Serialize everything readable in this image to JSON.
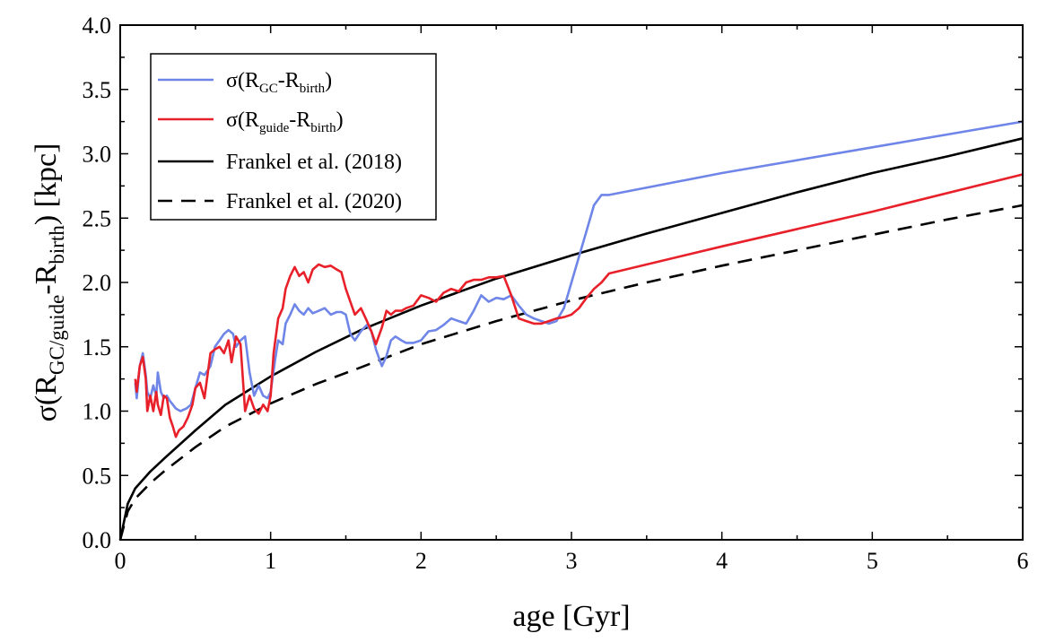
{
  "chart_data": {
    "type": "line",
    "xlabel": "age [Gyr]",
    "ylabel": {
      "base": "σ(R",
      "sub1": "GC/guide",
      "mid": "-R",
      "sub2": "birth",
      "end": ") [kpc]"
    },
    "xlim": [
      0,
      6
    ],
    "ylim": [
      0,
      4
    ],
    "x_ticks": [
      "0",
      "1",
      "2",
      "3",
      "4",
      "5",
      "6"
    ],
    "y_ticks": [
      "0.0",
      "0.5",
      "1.0",
      "1.5",
      "2.0",
      "2.5",
      "3.0",
      "3.5",
      "4.0"
    ],
    "grid": false,
    "legend_position": "top-left",
    "series": [
      {
        "name": "σ(R_GC-R_birth)",
        "legend": {
          "base": "σ(R",
          "sub1": "GC",
          "mid": "-R",
          "sub2": "birth",
          "end": ")"
        },
        "color": "#6f86e8",
        "dash": "solid",
        "x": [
          0.1,
          0.11,
          0.13,
          0.15,
          0.17,
          0.18,
          0.2,
          0.22,
          0.24,
          0.25,
          0.27,
          0.29,
          0.31,
          0.33,
          0.35,
          0.37,
          0.4,
          0.44,
          0.47,
          0.5,
          0.53,
          0.56,
          0.6,
          0.63,
          0.66,
          0.69,
          0.72,
          0.75,
          0.77,
          0.8,
          0.83,
          0.86,
          0.89,
          0.92,
          0.95,
          0.98,
          1.0,
          1.03,
          1.05,
          1.08,
          1.1,
          1.13,
          1.16,
          1.19,
          1.22,
          1.25,
          1.28,
          1.32,
          1.36,
          1.4,
          1.44,
          1.47,
          1.5,
          1.53,
          1.56,
          1.6,
          1.64,
          1.67,
          1.7,
          1.74,
          1.77,
          1.8,
          1.83,
          1.87,
          1.9,
          1.95,
          2.0,
          2.05,
          2.1,
          2.15,
          2.2,
          2.25,
          2.3,
          2.35,
          2.4,
          2.45,
          2.5,
          2.55,
          2.6,
          2.65,
          2.7,
          2.75,
          2.8,
          2.85,
          2.9,
          2.95,
          3.0,
          3.05,
          3.1,
          3.15,
          3.2,
          3.25,
          4.0,
          5.0,
          6.0
        ],
        "y": [
          1.22,
          1.1,
          1.35,
          1.45,
          1.28,
          1.15,
          1.1,
          1.2,
          1.12,
          1.3,
          1.15,
          1.1,
          1.12,
          1.08,
          1.05,
          1.02,
          1.0,
          1.02,
          1.05,
          1.18,
          1.3,
          1.28,
          1.35,
          1.5,
          1.55,
          1.6,
          1.63,
          1.6,
          1.5,
          1.55,
          1.58,
          1.3,
          1.12,
          1.2,
          1.12,
          1.1,
          1.15,
          1.4,
          1.55,
          1.52,
          1.68,
          1.75,
          1.83,
          1.78,
          1.75,
          1.8,
          1.76,
          1.78,
          1.8,
          1.75,
          1.77,
          1.77,
          1.75,
          1.6,
          1.55,
          1.62,
          1.67,
          1.62,
          1.48,
          1.35,
          1.43,
          1.55,
          1.58,
          1.55,
          1.53,
          1.53,
          1.55,
          1.62,
          1.63,
          1.67,
          1.72,
          1.7,
          1.68,
          1.78,
          1.9,
          1.85,
          1.88,
          1.87,
          1.9,
          1.82,
          1.75,
          1.72,
          1.7,
          1.68,
          1.7,
          1.8,
          2.0,
          2.2,
          2.4,
          2.6,
          2.68,
          2.68,
          2.85,
          3.05,
          3.25
        ]
      },
      {
        "name": "σ(R_guide-R_birth)",
        "legend": {
          "base": "σ(R",
          "sub1": "guide",
          "mid": "-R",
          "sub2": "birth",
          "end": ")"
        },
        "color": "#e8202a",
        "dash": "solid",
        "x": [
          0.1,
          0.11,
          0.13,
          0.15,
          0.17,
          0.18,
          0.2,
          0.22,
          0.24,
          0.25,
          0.27,
          0.29,
          0.31,
          0.33,
          0.35,
          0.37,
          0.39,
          0.42,
          0.45,
          0.48,
          0.5,
          0.53,
          0.56,
          0.6,
          0.63,
          0.66,
          0.69,
          0.72,
          0.74,
          0.77,
          0.8,
          0.83,
          0.86,
          0.89,
          0.92,
          0.95,
          0.98,
          1.0,
          1.02,
          1.05,
          1.08,
          1.1,
          1.13,
          1.16,
          1.19,
          1.22,
          1.25,
          1.28,
          1.32,
          1.36,
          1.4,
          1.44,
          1.47,
          1.5,
          1.53,
          1.56,
          1.6,
          1.64,
          1.67,
          1.7,
          1.74,
          1.77,
          1.8,
          1.83,
          1.87,
          1.9,
          1.95,
          2.0,
          2.05,
          2.1,
          2.15,
          2.2,
          2.25,
          2.3,
          2.35,
          2.4,
          2.45,
          2.5,
          2.55,
          2.6,
          2.65,
          2.7,
          2.75,
          2.8,
          2.85,
          2.9,
          2.95,
          3.0,
          3.05,
          3.1,
          3.15,
          3.2,
          3.25,
          4.0,
          5.0,
          6.0
        ],
        "y": [
          1.25,
          1.15,
          1.35,
          1.42,
          1.25,
          1.0,
          1.12,
          1.0,
          1.15,
          1.05,
          0.97,
          1.12,
          1.1,
          0.95,
          0.88,
          0.8,
          0.85,
          0.88,
          0.95,
          1.05,
          1.18,
          1.22,
          1.1,
          1.45,
          1.48,
          1.5,
          1.45,
          1.55,
          1.38,
          1.58,
          1.52,
          1.0,
          1.12,
          1.02,
          0.98,
          1.05,
          1.0,
          1.12,
          1.45,
          1.72,
          1.8,
          1.95,
          2.05,
          2.12,
          2.05,
          2.08,
          2.0,
          2.1,
          2.14,
          2.12,
          2.13,
          2.1,
          2.08,
          1.95,
          1.85,
          1.75,
          1.8,
          1.7,
          1.62,
          1.52,
          1.65,
          1.78,
          1.75,
          1.78,
          1.78,
          1.8,
          1.82,
          1.9,
          1.88,
          1.85,
          1.92,
          1.95,
          1.93,
          2.0,
          2.02,
          2.02,
          2.04,
          2.04,
          2.05,
          1.9,
          1.72,
          1.7,
          1.68,
          1.68,
          1.7,
          1.72,
          1.73,
          1.75,
          1.8,
          1.88,
          1.95,
          2.0,
          2.07,
          2.28,
          2.55,
          2.84
        ]
      },
      {
        "name": "Frankel et al. (2018)",
        "legend": {
          "base": "Frankel et al. (2018)",
          "sub1": "",
          "mid": "",
          "sub2": "",
          "end": ""
        },
        "color": "#000000",
        "dash": "solid",
        "x": [
          0,
          0.05,
          0.1,
          0.2,
          0.3,
          0.5,
          0.7,
          1.0,
          1.3,
          1.6,
          2.0,
          2.5,
          3.0,
          3.5,
          4.0,
          4.5,
          5.0,
          5.5,
          6.0
        ],
        "y": [
          0,
          0.28,
          0.4,
          0.53,
          0.64,
          0.85,
          1.05,
          1.27,
          1.46,
          1.63,
          1.82,
          2.03,
          2.21,
          2.38,
          2.54,
          2.7,
          2.85,
          2.98,
          3.12
        ]
      },
      {
        "name": "Frankel et al. (2020)",
        "legend": {
          "base": "Frankel et al. (2020)",
          "sub1": "",
          "mid": "",
          "sub2": "",
          "end": ""
        },
        "color": "#000000",
        "dash": "dashed",
        "x": [
          0,
          0.05,
          0.1,
          0.2,
          0.3,
          0.5,
          0.7,
          1.0,
          1.3,
          1.6,
          2.0,
          2.5,
          3.0,
          3.5,
          4.0,
          4.5,
          5.0,
          5.5,
          6.0
        ],
        "y": [
          0,
          0.22,
          0.32,
          0.44,
          0.54,
          0.72,
          0.88,
          1.06,
          1.21,
          1.34,
          1.52,
          1.7,
          1.86,
          2.0,
          2.13,
          2.25,
          2.37,
          2.49,
          2.6
        ]
      }
    ]
  }
}
